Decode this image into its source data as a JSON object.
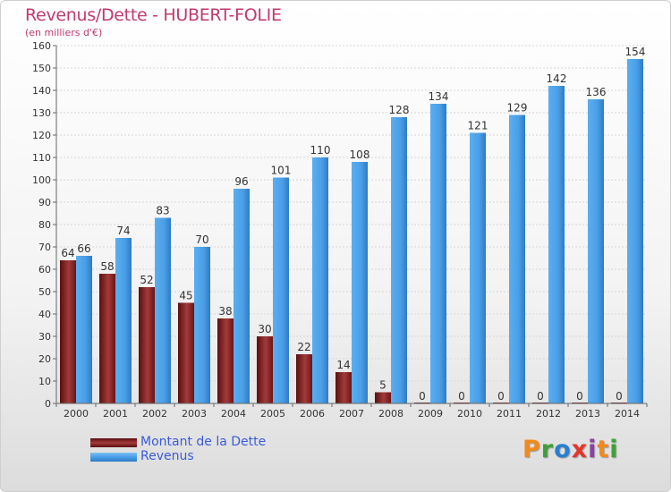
{
  "title": "Revenus/Dette - HUBERT-FOLIE",
  "unit_label": "(en milliers d'€)",
  "brand": "Proxiti",
  "brand_colors": [
    "#f08a1c",
    "#3fa03a",
    "#2a7fd0",
    "#e2362b",
    "#8c3fa8",
    "#f08a1c",
    "#3fa03a"
  ],
  "legend": [
    {
      "label": "Montant de la Dette",
      "color": "#7a1a1a"
    },
    {
      "label": "Revenus",
      "color": "#4a9ee6"
    }
  ],
  "chart_data": {
    "type": "bar",
    "categories": [
      "2000",
      "2001",
      "2002",
      "2003",
      "2004",
      "2005",
      "2006",
      "2007",
      "2008",
      "2009",
      "2010",
      "2011",
      "2012",
      "2013",
      "2014"
    ],
    "series": [
      {
        "name": "Montant de la Dette",
        "color": "#7a1a1a",
        "values": [
          64,
          58,
          52,
          45,
          38,
          30,
          22,
          14,
          5,
          0,
          0,
          0,
          0,
          0,
          0
        ]
      },
      {
        "name": "Revenus",
        "color": "#4a9ee6",
        "values": [
          66,
          74,
          83,
          70,
          96,
          101,
          110,
          108,
          128,
          134,
          121,
          129,
          142,
          136,
          154
        ]
      }
    ],
    "ylim": [
      0,
      160
    ],
    "y_ticks": [
      0,
      10,
      20,
      30,
      40,
      50,
      60,
      70,
      80,
      90,
      100,
      110,
      120,
      130,
      140,
      150,
      160
    ],
    "grid": true,
    "legend_position": "bottom-left",
    "data_labels": true
  }
}
